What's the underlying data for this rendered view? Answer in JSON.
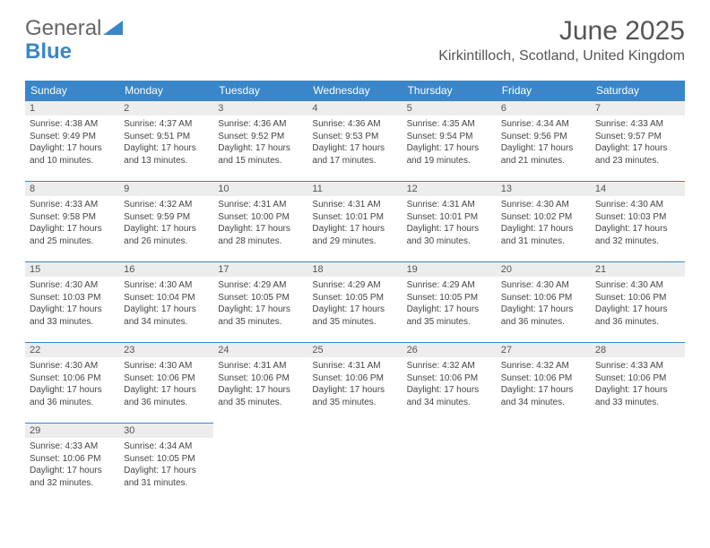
{
  "logo": {
    "word1": "General",
    "word2": "Blue"
  },
  "title": "June 2025",
  "location": "Kirkintilloch, Scotland, United Kingdom",
  "colors": {
    "header_bg": "#3a86c8",
    "header_text": "#ffffff",
    "daynum_bg": "#ededed",
    "border": "#3a86c8",
    "body_text": "#444444",
    "title_text": "#555555"
  },
  "weekdays": [
    "Sunday",
    "Monday",
    "Tuesday",
    "Wednesday",
    "Thursday",
    "Friday",
    "Saturday"
  ],
  "weeks": [
    [
      {
        "d": "1",
        "sr": "4:38 AM",
        "ss": "9:49 PM",
        "dl": "17 hours and 10 minutes."
      },
      {
        "d": "2",
        "sr": "4:37 AM",
        "ss": "9:51 PM",
        "dl": "17 hours and 13 minutes."
      },
      {
        "d": "3",
        "sr": "4:36 AM",
        "ss": "9:52 PM",
        "dl": "17 hours and 15 minutes."
      },
      {
        "d": "4",
        "sr": "4:36 AM",
        "ss": "9:53 PM",
        "dl": "17 hours and 17 minutes."
      },
      {
        "d": "5",
        "sr": "4:35 AM",
        "ss": "9:54 PM",
        "dl": "17 hours and 19 minutes."
      },
      {
        "d": "6",
        "sr": "4:34 AM",
        "ss": "9:56 PM",
        "dl": "17 hours and 21 minutes."
      },
      {
        "d": "7",
        "sr": "4:33 AM",
        "ss": "9:57 PM",
        "dl": "17 hours and 23 minutes."
      }
    ],
    [
      {
        "d": "8",
        "sr": "4:33 AM",
        "ss": "9:58 PM",
        "dl": "17 hours and 25 minutes."
      },
      {
        "d": "9",
        "sr": "4:32 AM",
        "ss": "9:59 PM",
        "dl": "17 hours and 26 minutes."
      },
      {
        "d": "10",
        "sr": "4:31 AM",
        "ss": "10:00 PM",
        "dl": "17 hours and 28 minutes."
      },
      {
        "d": "11",
        "sr": "4:31 AM",
        "ss": "10:01 PM",
        "dl": "17 hours and 29 minutes."
      },
      {
        "d": "12",
        "sr": "4:31 AM",
        "ss": "10:01 PM",
        "dl": "17 hours and 30 minutes."
      },
      {
        "d": "13",
        "sr": "4:30 AM",
        "ss": "10:02 PM",
        "dl": "17 hours and 31 minutes."
      },
      {
        "d": "14",
        "sr": "4:30 AM",
        "ss": "10:03 PM",
        "dl": "17 hours and 32 minutes."
      }
    ],
    [
      {
        "d": "15",
        "sr": "4:30 AM",
        "ss": "10:03 PM",
        "dl": "17 hours and 33 minutes."
      },
      {
        "d": "16",
        "sr": "4:30 AM",
        "ss": "10:04 PM",
        "dl": "17 hours and 34 minutes."
      },
      {
        "d": "17",
        "sr": "4:29 AM",
        "ss": "10:05 PM",
        "dl": "17 hours and 35 minutes."
      },
      {
        "d": "18",
        "sr": "4:29 AM",
        "ss": "10:05 PM",
        "dl": "17 hours and 35 minutes."
      },
      {
        "d": "19",
        "sr": "4:29 AM",
        "ss": "10:05 PM",
        "dl": "17 hours and 35 minutes."
      },
      {
        "d": "20",
        "sr": "4:30 AM",
        "ss": "10:06 PM",
        "dl": "17 hours and 36 minutes."
      },
      {
        "d": "21",
        "sr": "4:30 AM",
        "ss": "10:06 PM",
        "dl": "17 hours and 36 minutes."
      }
    ],
    [
      {
        "d": "22",
        "sr": "4:30 AM",
        "ss": "10:06 PM",
        "dl": "17 hours and 36 minutes."
      },
      {
        "d": "23",
        "sr": "4:30 AM",
        "ss": "10:06 PM",
        "dl": "17 hours and 36 minutes."
      },
      {
        "d": "24",
        "sr": "4:31 AM",
        "ss": "10:06 PM",
        "dl": "17 hours and 35 minutes."
      },
      {
        "d": "25",
        "sr": "4:31 AM",
        "ss": "10:06 PM",
        "dl": "17 hours and 35 minutes."
      },
      {
        "d": "26",
        "sr": "4:32 AM",
        "ss": "10:06 PM",
        "dl": "17 hours and 34 minutes."
      },
      {
        "d": "27",
        "sr": "4:32 AM",
        "ss": "10:06 PM",
        "dl": "17 hours and 34 minutes."
      },
      {
        "d": "28",
        "sr": "4:33 AM",
        "ss": "10:06 PM",
        "dl": "17 hours and 33 minutes."
      }
    ],
    [
      {
        "d": "29",
        "sr": "4:33 AM",
        "ss": "10:06 PM",
        "dl": "17 hours and 32 minutes."
      },
      {
        "d": "30",
        "sr": "4:34 AM",
        "ss": "10:05 PM",
        "dl": "17 hours and 31 minutes."
      },
      null,
      null,
      null,
      null,
      null
    ]
  ],
  "labels": {
    "sunrise": "Sunrise: ",
    "sunset": "Sunset: ",
    "daylight": "Daylight: "
  }
}
